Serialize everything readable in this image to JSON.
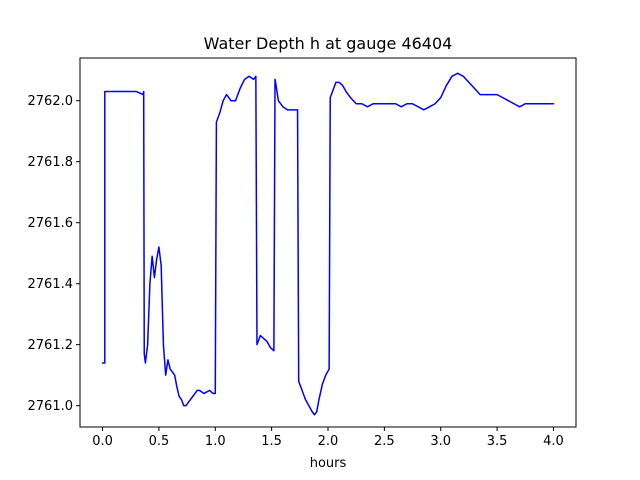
{
  "chart_data": {
    "type": "line",
    "title": "Water Depth h at gauge 46404",
    "xlabel": "hours",
    "ylabel": "",
    "xlim": [
      -0.2,
      4.2
    ],
    "ylim": [
      2760.93,
      2762.14
    ],
    "xticks": [
      0.0,
      0.5,
      1.0,
      1.5,
      2.0,
      2.5,
      3.0,
      3.5,
      4.0
    ],
    "xtick_labels": [
      "0.0",
      "0.5",
      "1.0",
      "1.5",
      "2.0",
      "2.5",
      "3.0",
      "3.5",
      "4.0"
    ],
    "yticks": [
      2761.0,
      2761.2,
      2761.4,
      2761.6,
      2761.8,
      2762.0
    ],
    "ytick_labels": [
      "2761.0",
      "2761.2",
      "2761.4",
      "2761.6",
      "2761.8",
      "2762.0"
    ],
    "grid": false,
    "legend": "none",
    "series": [
      {
        "color": "#0000ff",
        "x": [
          0.0,
          0.02,
          0.02,
          0.1,
          0.2,
          0.3,
          0.36,
          0.365,
          0.37,
          0.38,
          0.4,
          0.42,
          0.44,
          0.46,
          0.48,
          0.5,
          0.52,
          0.54,
          0.56,
          0.58,
          0.6,
          0.62,
          0.64,
          0.66,
          0.68,
          0.7,
          0.72,
          0.74,
          0.76,
          0.78,
          0.8,
          0.82,
          0.84,
          0.86,
          0.9,
          0.95,
          0.98,
          1.0,
          1.01,
          1.02,
          1.04,
          1.07,
          1.1,
          1.14,
          1.18,
          1.22,
          1.26,
          1.3,
          1.34,
          1.36,
          1.37,
          1.38,
          1.4,
          1.43,
          1.46,
          1.49,
          1.52,
          1.53,
          1.535,
          1.56,
          1.6,
          1.64,
          1.68,
          1.72,
          1.73,
          1.74,
          1.75,
          1.77,
          1.8,
          1.83,
          1.86,
          1.88,
          1.9,
          1.92,
          1.95,
          1.98,
          2.01,
          2.02,
          2.04,
          2.07,
          2.1,
          2.13,
          2.16,
          2.2,
          2.25,
          2.3,
          2.35,
          2.4,
          2.45,
          2.5,
          2.55,
          2.6,
          2.65,
          2.7,
          2.75,
          2.8,
          2.85,
          2.9,
          2.95,
          3.0,
          3.05,
          3.1,
          3.15,
          3.2,
          3.25,
          3.3,
          3.35,
          3.4,
          3.45,
          3.5,
          3.55,
          3.6,
          3.65,
          3.7,
          3.75,
          3.8,
          3.9,
          4.0
        ],
        "y": [
          2761.14,
          2761.14,
          2762.03,
          2762.03,
          2762.03,
          2762.03,
          2762.02,
          2762.03,
          2761.17,
          2761.14,
          2761.2,
          2761.4,
          2761.49,
          2761.42,
          2761.48,
          2761.52,
          2761.46,
          2761.2,
          2761.1,
          2761.15,
          2761.12,
          2761.11,
          2761.1,
          2761.06,
          2761.03,
          2761.02,
          2761.0,
          2761.0,
          2761.01,
          2761.02,
          2761.03,
          2761.04,
          2761.05,
          2761.05,
          2761.04,
          2761.05,
          2761.04,
          2761.04,
          2761.93,
          2761.94,
          2761.96,
          2762.0,
          2762.02,
          2762.0,
          2762.0,
          2762.04,
          2762.07,
          2762.08,
          2762.07,
          2762.08,
          2761.2,
          2761.21,
          2761.23,
          2761.22,
          2761.21,
          2761.19,
          2761.18,
          2762.07,
          2762.06,
          2762.0,
          2761.98,
          2761.97,
          2761.97,
          2761.97,
          2761.97,
          2761.08,
          2761.07,
          2761.05,
          2761.02,
          2761.0,
          2760.98,
          2760.97,
          2760.98,
          2761.02,
          2761.07,
          2761.1,
          2761.12,
          2762.01,
          2762.03,
          2762.06,
          2762.06,
          2762.05,
          2762.03,
          2762.01,
          2761.99,
          2761.99,
          2761.98,
          2761.99,
          2761.99,
          2761.99,
          2761.99,
          2761.99,
          2761.98,
          2761.99,
          2761.99,
          2761.98,
          2761.97,
          2761.98,
          2761.99,
          2762.01,
          2762.05,
          2762.08,
          2762.09,
          2762.08,
          2762.06,
          2762.04,
          2762.02,
          2762.02,
          2762.02,
          2762.02,
          2762.01,
          2762.0,
          2761.99,
          2761.98,
          2761.99,
          2761.99,
          2761.99,
          2761.99
        ]
      }
    ]
  }
}
